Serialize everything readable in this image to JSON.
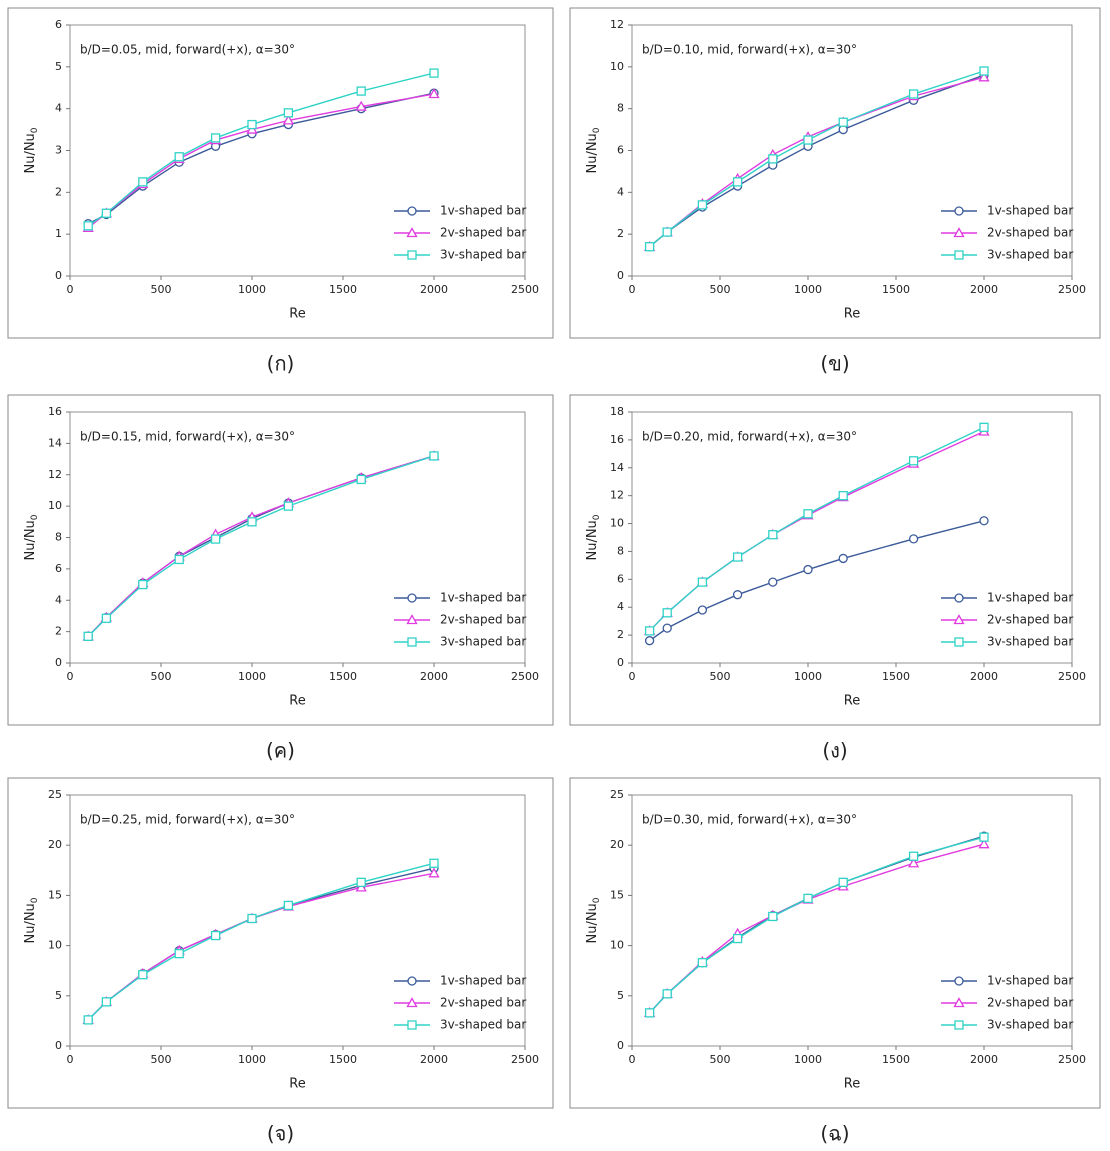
{
  "chart_data": [
    {
      "type": "line",
      "caption": "(ก)",
      "annotation": "b/D=0.05, mid, forward(+x), α=30°",
      "xlabel": "Re",
      "ylabel": "Nu/Nu",
      "ylabel_subscript": "0",
      "x": [
        100,
        200,
        400,
        600,
        800,
        1000,
        1200,
        1600,
        2000
      ],
      "xlim": [
        0,
        2500
      ],
      "xticks": [
        0,
        500,
        1000,
        1500,
        2000,
        2500
      ],
      "ylim": [
        0,
        6
      ],
      "yticks": [
        0,
        1,
        2,
        3,
        4,
        5,
        6
      ],
      "series": [
        {
          "name": "1v-shaped bar",
          "color": "#3b5a9a",
          "marker": "circle",
          "values": [
            1.25,
            1.47,
            2.15,
            2.72,
            3.1,
            3.4,
            3.62,
            4.0,
            4.37
          ]
        },
        {
          "name": "2v-shaped bar",
          "color": "#e03ce0",
          "marker": "triangle",
          "values": [
            1.15,
            1.5,
            2.2,
            2.8,
            3.25,
            3.5,
            3.72,
            4.05,
            4.35
          ]
        },
        {
          "name": "3v-shaped bar",
          "color": "#2fd3c6",
          "marker": "square",
          "values": [
            1.2,
            1.5,
            2.25,
            2.85,
            3.3,
            3.62,
            3.9,
            4.42,
            4.85
          ]
        }
      ]
    },
    {
      "type": "line",
      "caption": "(ข)",
      "annotation": "b/D=0.10, mid, forward(+x), α=30°",
      "xlabel": "Re",
      "ylabel": "Nu/Nu",
      "ylabel_subscript": "0",
      "x": [
        100,
        200,
        400,
        600,
        800,
        1000,
        1200,
        1600,
        2000
      ],
      "xlim": [
        0,
        2500
      ],
      "xticks": [
        0,
        500,
        1000,
        1500,
        2000,
        2500
      ],
      "ylim": [
        0,
        12
      ],
      "yticks": [
        0,
        2,
        4,
        6,
        8,
        10,
        12
      ],
      "series": [
        {
          "name": "1v-shaped bar",
          "color": "#3b5a9a",
          "marker": "circle",
          "values": [
            1.4,
            2.1,
            3.3,
            4.3,
            5.3,
            6.2,
            7.0,
            8.4,
            9.6
          ]
        },
        {
          "name": "2v-shaped bar",
          "color": "#e03ce0",
          "marker": "triangle",
          "values": [
            1.4,
            2.1,
            3.45,
            4.65,
            5.8,
            6.65,
            7.35,
            8.6,
            9.5
          ]
        },
        {
          "name": "3v-shaped bar",
          "color": "#2fd3c6",
          "marker": "square",
          "values": [
            1.4,
            2.1,
            3.4,
            4.5,
            5.6,
            6.5,
            7.35,
            8.7,
            9.8
          ]
        }
      ]
    },
    {
      "type": "line",
      "caption": "(ค)",
      "annotation": "b/D=0.15, mid, forward(+x), α=30°",
      "xlabel": "Re",
      "ylabel": "Nu/Nu",
      "ylabel_subscript": "0",
      "x": [
        100,
        200,
        400,
        600,
        800,
        1000,
        1200,
        1600,
        2000
      ],
      "xlim": [
        0,
        2500
      ],
      "xticks": [
        0,
        500,
        1000,
        1500,
        2000,
        2500
      ],
      "ylim": [
        0,
        16
      ],
      "yticks": [
        0,
        2,
        4,
        6,
        8,
        10,
        12,
        14,
        16
      ],
      "series": [
        {
          "name": "1v-shaped bar",
          "color": "#3b5a9a",
          "marker": "circle",
          "values": [
            1.7,
            2.9,
            5.1,
            6.8,
            8.0,
            9.2,
            10.2,
            11.8,
            13.2
          ]
        },
        {
          "name": "2v-shaped bar",
          "color": "#e03ce0",
          "marker": "triangle",
          "values": [
            1.7,
            2.9,
            5.1,
            6.8,
            8.2,
            9.3,
            10.2,
            11.8,
            13.2
          ]
        },
        {
          "name": "3v-shaped bar",
          "color": "#2fd3c6",
          "marker": "square",
          "values": [
            1.7,
            2.85,
            5.0,
            6.6,
            7.9,
            9.0,
            10.0,
            11.7,
            13.2
          ]
        }
      ]
    },
    {
      "type": "line",
      "caption": "(ง)",
      "annotation": "b/D=0.20, mid, forward(+x), α=30°",
      "xlabel": "Re",
      "ylabel": "Nu/Nu",
      "ylabel_subscript": "0",
      "x": [
        100,
        200,
        400,
        600,
        800,
        1000,
        1200,
        1600,
        2000
      ],
      "xlim": [
        0,
        2500
      ],
      "xticks": [
        0,
        500,
        1000,
        1500,
        2000,
        2500
      ],
      "ylim": [
        0,
        18
      ],
      "yticks": [
        0,
        2,
        4,
        6,
        8,
        10,
        12,
        14,
        16,
        18
      ],
      "series": [
        {
          "name": "1v-shaped bar",
          "color": "#3b5a9a",
          "marker": "circle",
          "values": [
            1.6,
            2.5,
            3.8,
            4.9,
            5.8,
            6.7,
            7.5,
            8.9,
            10.2
          ]
        },
        {
          "name": "2v-shaped bar",
          "color": "#e03ce0",
          "marker": "triangle",
          "values": [
            2.3,
            3.6,
            5.8,
            7.6,
            9.2,
            10.6,
            11.9,
            14.3,
            16.6
          ]
        },
        {
          "name": "3v-shaped bar",
          "color": "#2fd3c6",
          "marker": "square",
          "values": [
            2.3,
            3.6,
            5.8,
            7.6,
            9.2,
            10.7,
            12.0,
            14.5,
            16.9
          ]
        }
      ]
    },
    {
      "type": "line",
      "caption": "(จ)",
      "annotation": "b/D=0.25, mid, forward(+x), α=30°",
      "xlabel": "Re",
      "ylabel": "Nu/Nu",
      "ylabel_subscript": "0",
      "x": [
        100,
        200,
        400,
        600,
        800,
        1000,
        1200,
        1600,
        2000
      ],
      "xlim": [
        0,
        2500
      ],
      "xticks": [
        0,
        500,
        1000,
        1500,
        2000,
        2500
      ],
      "ylim": [
        0,
        25
      ],
      "yticks": [
        0,
        5,
        10,
        15,
        20,
        25
      ],
      "series": [
        {
          "name": "1v-shaped bar",
          "color": "#3b5a9a",
          "marker": "circle",
          "values": [
            2.6,
            4.4,
            7.2,
            9.5,
            11.1,
            12.7,
            14.0,
            16.0,
            17.7
          ]
        },
        {
          "name": "2v-shaped bar",
          "color": "#e03ce0",
          "marker": "triangle",
          "values": [
            2.6,
            4.4,
            7.2,
            9.5,
            11.1,
            12.7,
            13.9,
            15.8,
            17.2
          ]
        },
        {
          "name": "3v-shaped bar",
          "color": "#2fd3c6",
          "marker": "square",
          "values": [
            2.6,
            4.4,
            7.1,
            9.2,
            11.0,
            12.7,
            14.0,
            16.3,
            18.2
          ]
        }
      ]
    },
    {
      "type": "line",
      "caption": "(ฉ)",
      "annotation": "b/D=0.30, mid, forward(+x), α=30°",
      "xlabel": "Re",
      "ylabel": "Nu/Nu",
      "ylabel_subscript": "0",
      "x": [
        100,
        200,
        400,
        600,
        800,
        1000,
        1200,
        1600,
        2000
      ],
      "xlim": [
        0,
        2500
      ],
      "xticks": [
        0,
        500,
        1000,
        1500,
        2000,
        2500
      ],
      "ylim": [
        0,
        25
      ],
      "yticks": [
        0,
        5,
        10,
        15,
        20,
        25
      ],
      "series": [
        {
          "name": "1v-shaped bar",
          "color": "#3b5a9a",
          "marker": "circle",
          "values": [
            3.3,
            5.2,
            8.3,
            10.8,
            13.0,
            14.7,
            16.3,
            18.8,
            20.9
          ]
        },
        {
          "name": "2v-shaped bar",
          "color": "#e03ce0",
          "marker": "triangle",
          "values": [
            3.3,
            5.2,
            8.4,
            11.2,
            13.0,
            14.6,
            15.9,
            18.2,
            20.1
          ]
        },
        {
          "name": "3v-shaped bar",
          "color": "#2fd3c6",
          "marker": "square",
          "values": [
            3.3,
            5.2,
            8.3,
            10.7,
            12.9,
            14.7,
            16.3,
            18.9,
            20.8
          ]
        }
      ]
    }
  ]
}
